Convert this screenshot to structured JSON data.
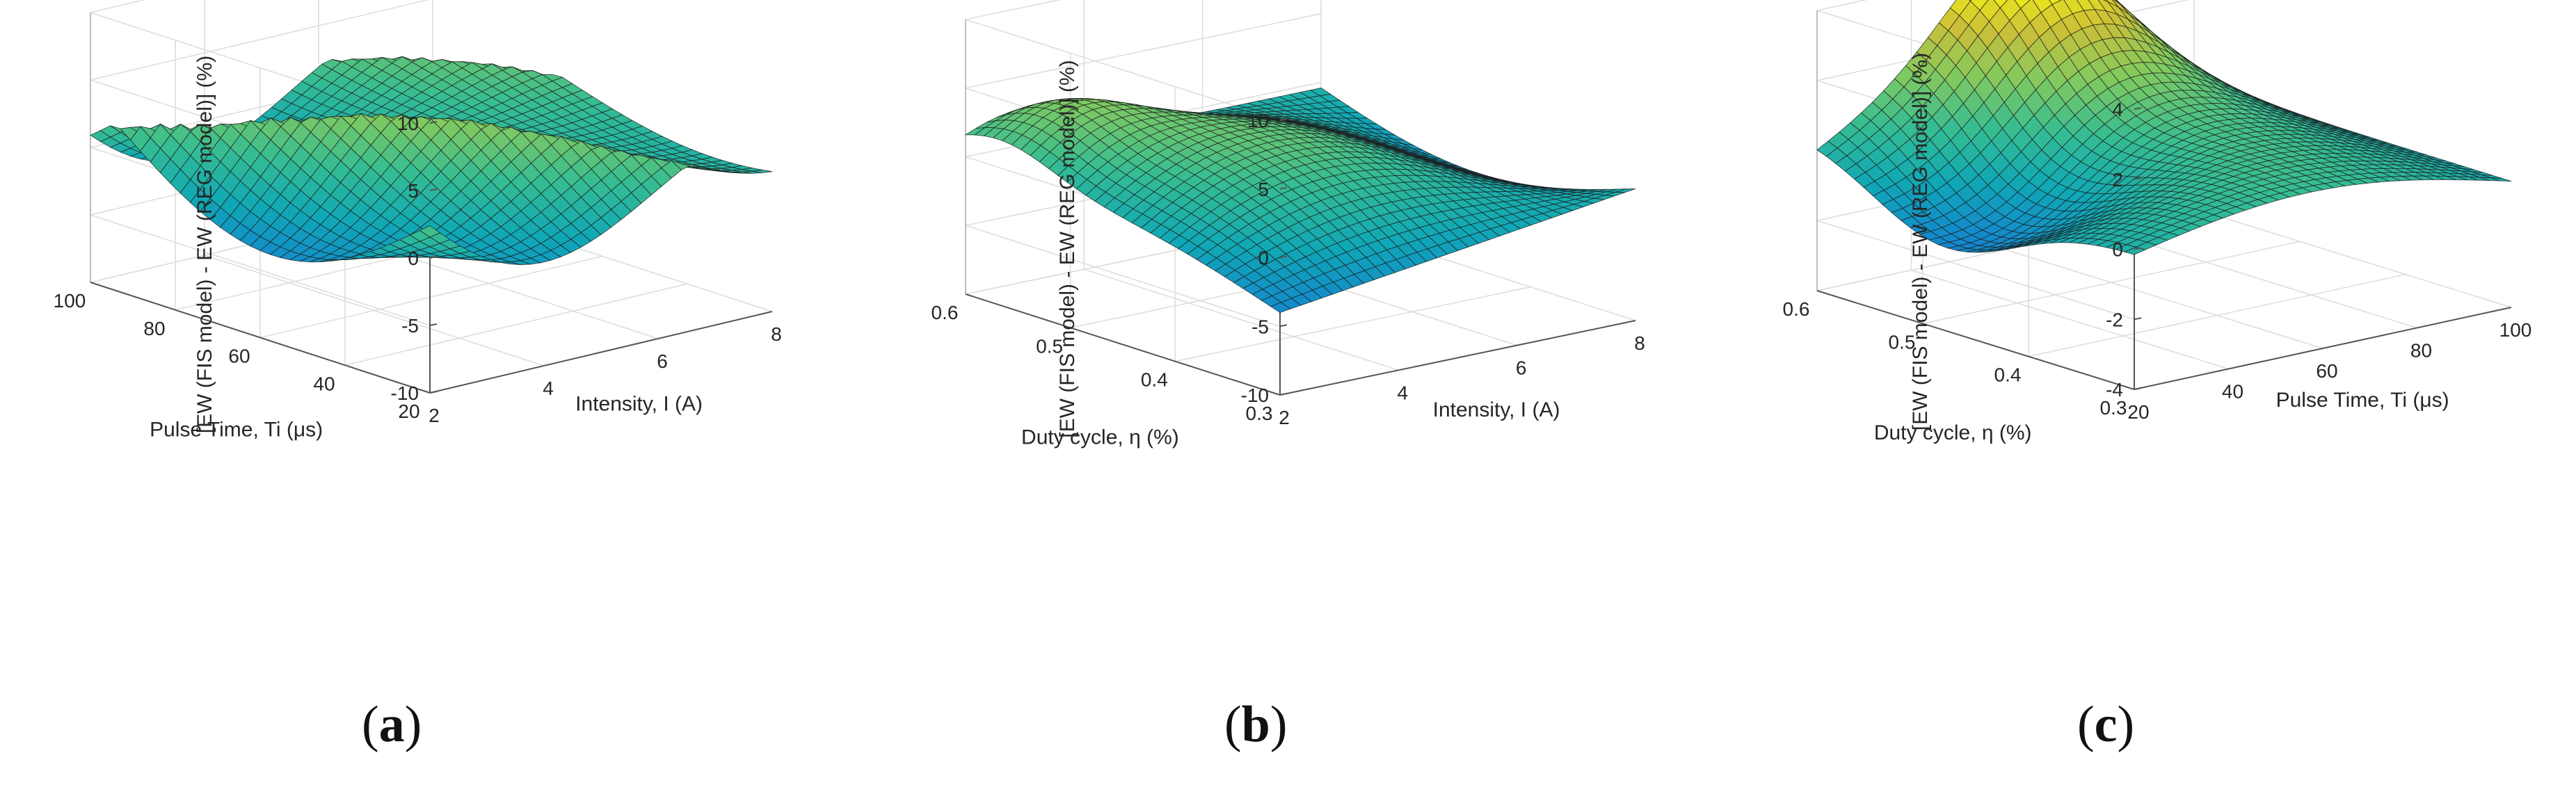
{
  "figure": {
    "labels": [
      {
        "open": "(",
        "letter": "a",
        "close": ")"
      },
      {
        "open": "(",
        "letter": "b",
        "close": ")"
      },
      {
        "open": "(",
        "letter": "c",
        "close": ")"
      }
    ]
  },
  "chart_data": [
    {
      "type": "surface",
      "panel": "a",
      "xlabel": "Intensity, I (A)",
      "ylabel": "Pulse Time, Ti (μs)",
      "zlabel": "[EW (FIS model) - EW (REG model)] (%)",
      "xlim": [
        2,
        8
      ],
      "ylim": [
        20,
        100
      ],
      "zlim": [
        -10,
        10
      ],
      "xticks": [
        2,
        4,
        6,
        8
      ],
      "yticks": [
        20,
        40,
        60,
        80,
        100
      ],
      "zticks": [
        -10,
        -5,
        0,
        5,
        10
      ],
      "colormap": "parula",
      "grid": true
    },
    {
      "type": "surface",
      "panel": "b",
      "xlabel": "Intensity, I (A)",
      "ylabel": "Duty cycle, η (%)",
      "zlabel": "[EW (FIS model) - EW (REG model)] (%)",
      "xlim": [
        2,
        8
      ],
      "ylim": [
        0.3,
        0.6
      ],
      "zlim": [
        -10,
        10
      ],
      "xticks": [
        2,
        4,
        6,
        8
      ],
      "yticks": [
        0.3,
        0.4,
        0.5,
        0.6
      ],
      "zticks": [
        -10,
        -5,
        0,
        5,
        10
      ],
      "colormap": "parula",
      "grid": true
    },
    {
      "type": "surface",
      "panel": "c",
      "xlabel": "Pulse Time, Ti (μs)",
      "ylabel": "Duty cycle, η (%)",
      "zlabel": "[EW (FIS model) - EW (REG model)] (%)",
      "xlim": [
        20,
        100
      ],
      "ylim": [
        0.3,
        0.6
      ],
      "zlim": [
        -4,
        4
      ],
      "xticks": [
        20,
        40,
        60,
        80,
        100
      ],
      "yticks": [
        0.3,
        0.4,
        0.5,
        0.6
      ],
      "zticks": [
        -4,
        -2,
        0,
        2,
        4
      ],
      "colormap": "parula",
      "grid": true
    }
  ]
}
